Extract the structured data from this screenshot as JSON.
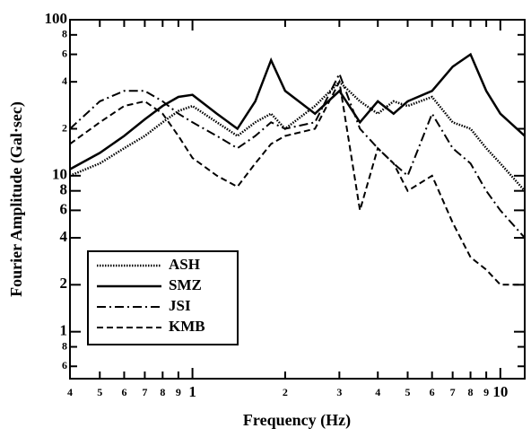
{
  "chart_data": {
    "type": "line",
    "x_label": "Frequency (Hz)",
    "y_label": "Fourier Amplitude (Gal·sec)",
    "xscale": "log",
    "yscale": "log",
    "xlim": [
      0.4,
      12
    ],
    "ylim": [
      0.5,
      100
    ],
    "xticks": [
      {
        "value": 0.4,
        "label": "4"
      },
      {
        "value": 0.5,
        "label": "5"
      },
      {
        "value": 0.6,
        "label": "6"
      },
      {
        "value": 0.7,
        "label": "7"
      },
      {
        "value": 0.8,
        "label": "8"
      },
      {
        "value": 0.9,
        "label": "9"
      },
      1,
      {
        "value": 2,
        "label": "2"
      },
      {
        "value": 3,
        "label": "3"
      },
      {
        "value": 4,
        "label": "4"
      },
      {
        "value": 5,
        "label": "5"
      },
      {
        "value": 6,
        "label": "6"
      },
      {
        "value": 7,
        "label": "7"
      },
      {
        "value": 8,
        "label": "8"
      },
      {
        "value": 9,
        "label": "9"
      },
      10
    ],
    "yticks": [
      {
        "value": 0.6,
        "label": "6"
      },
      {
        "value": 0.8,
        "label": "8"
      },
      1,
      2,
      4,
      6,
      8,
      10,
      {
        "value": 20,
        "label": "2"
      },
      {
        "value": 40,
        "label": "4"
      },
      {
        "value": 60,
        "label": "6"
      },
      {
        "value": 80,
        "label": "8"
      },
      100
    ],
    "legend": "lower left",
    "x": [
      0.4,
      0.5,
      0.6,
      0.7,
      0.8,
      0.9,
      1,
      1.2,
      1.4,
      1.6,
      1.8,
      2,
      2.5,
      3,
      3.5,
      4,
      4.5,
      5,
      6,
      7,
      8,
      9,
      10,
      12
    ],
    "series": [
      {
        "name": "ASH",
        "color": "#000000",
        "dash": "1.5,1.5",
        "width": 2.5,
        "values": [
          10,
          12,
          15,
          18,
          22,
          26,
          28,
          22,
          18,
          22,
          25,
          20,
          28,
          40,
          30,
          25,
          30,
          28,
          32,
          22,
          20,
          15,
          12,
          8
        ]
      },
      {
        "name": "SMZ",
        "color": "#000000",
        "dash": "none",
        "width": 2.5,
        "values": [
          11,
          14,
          18,
          23,
          28,
          32,
          33,
          25,
          20,
          30,
          55,
          35,
          25,
          35,
          22,
          30,
          25,
          30,
          35,
          50,
          60,
          35,
          25,
          18
        ]
      },
      {
        "name": "JSI",
        "color": "#000000",
        "dash": "10,4,2,4",
        "width": 2,
        "values": [
          20,
          30,
          35,
          35,
          30,
          25,
          22,
          18,
          15,
          18,
          22,
          20,
          22,
          45,
          20,
          15,
          12,
          10,
          25,
          15,
          12,
          8,
          6,
          4
        ]
      },
      {
        "name": "KMB",
        "color": "#000000",
        "dash": "7,4",
        "width": 2,
        "values": [
          16,
          22,
          28,
          30,
          25,
          18,
          13,
          10,
          8.5,
          12,
          16,
          18,
          20,
          40,
          6,
          15,
          12,
          8,
          10,
          5,
          3,
          2.5,
          2,
          2
        ]
      }
    ]
  }
}
